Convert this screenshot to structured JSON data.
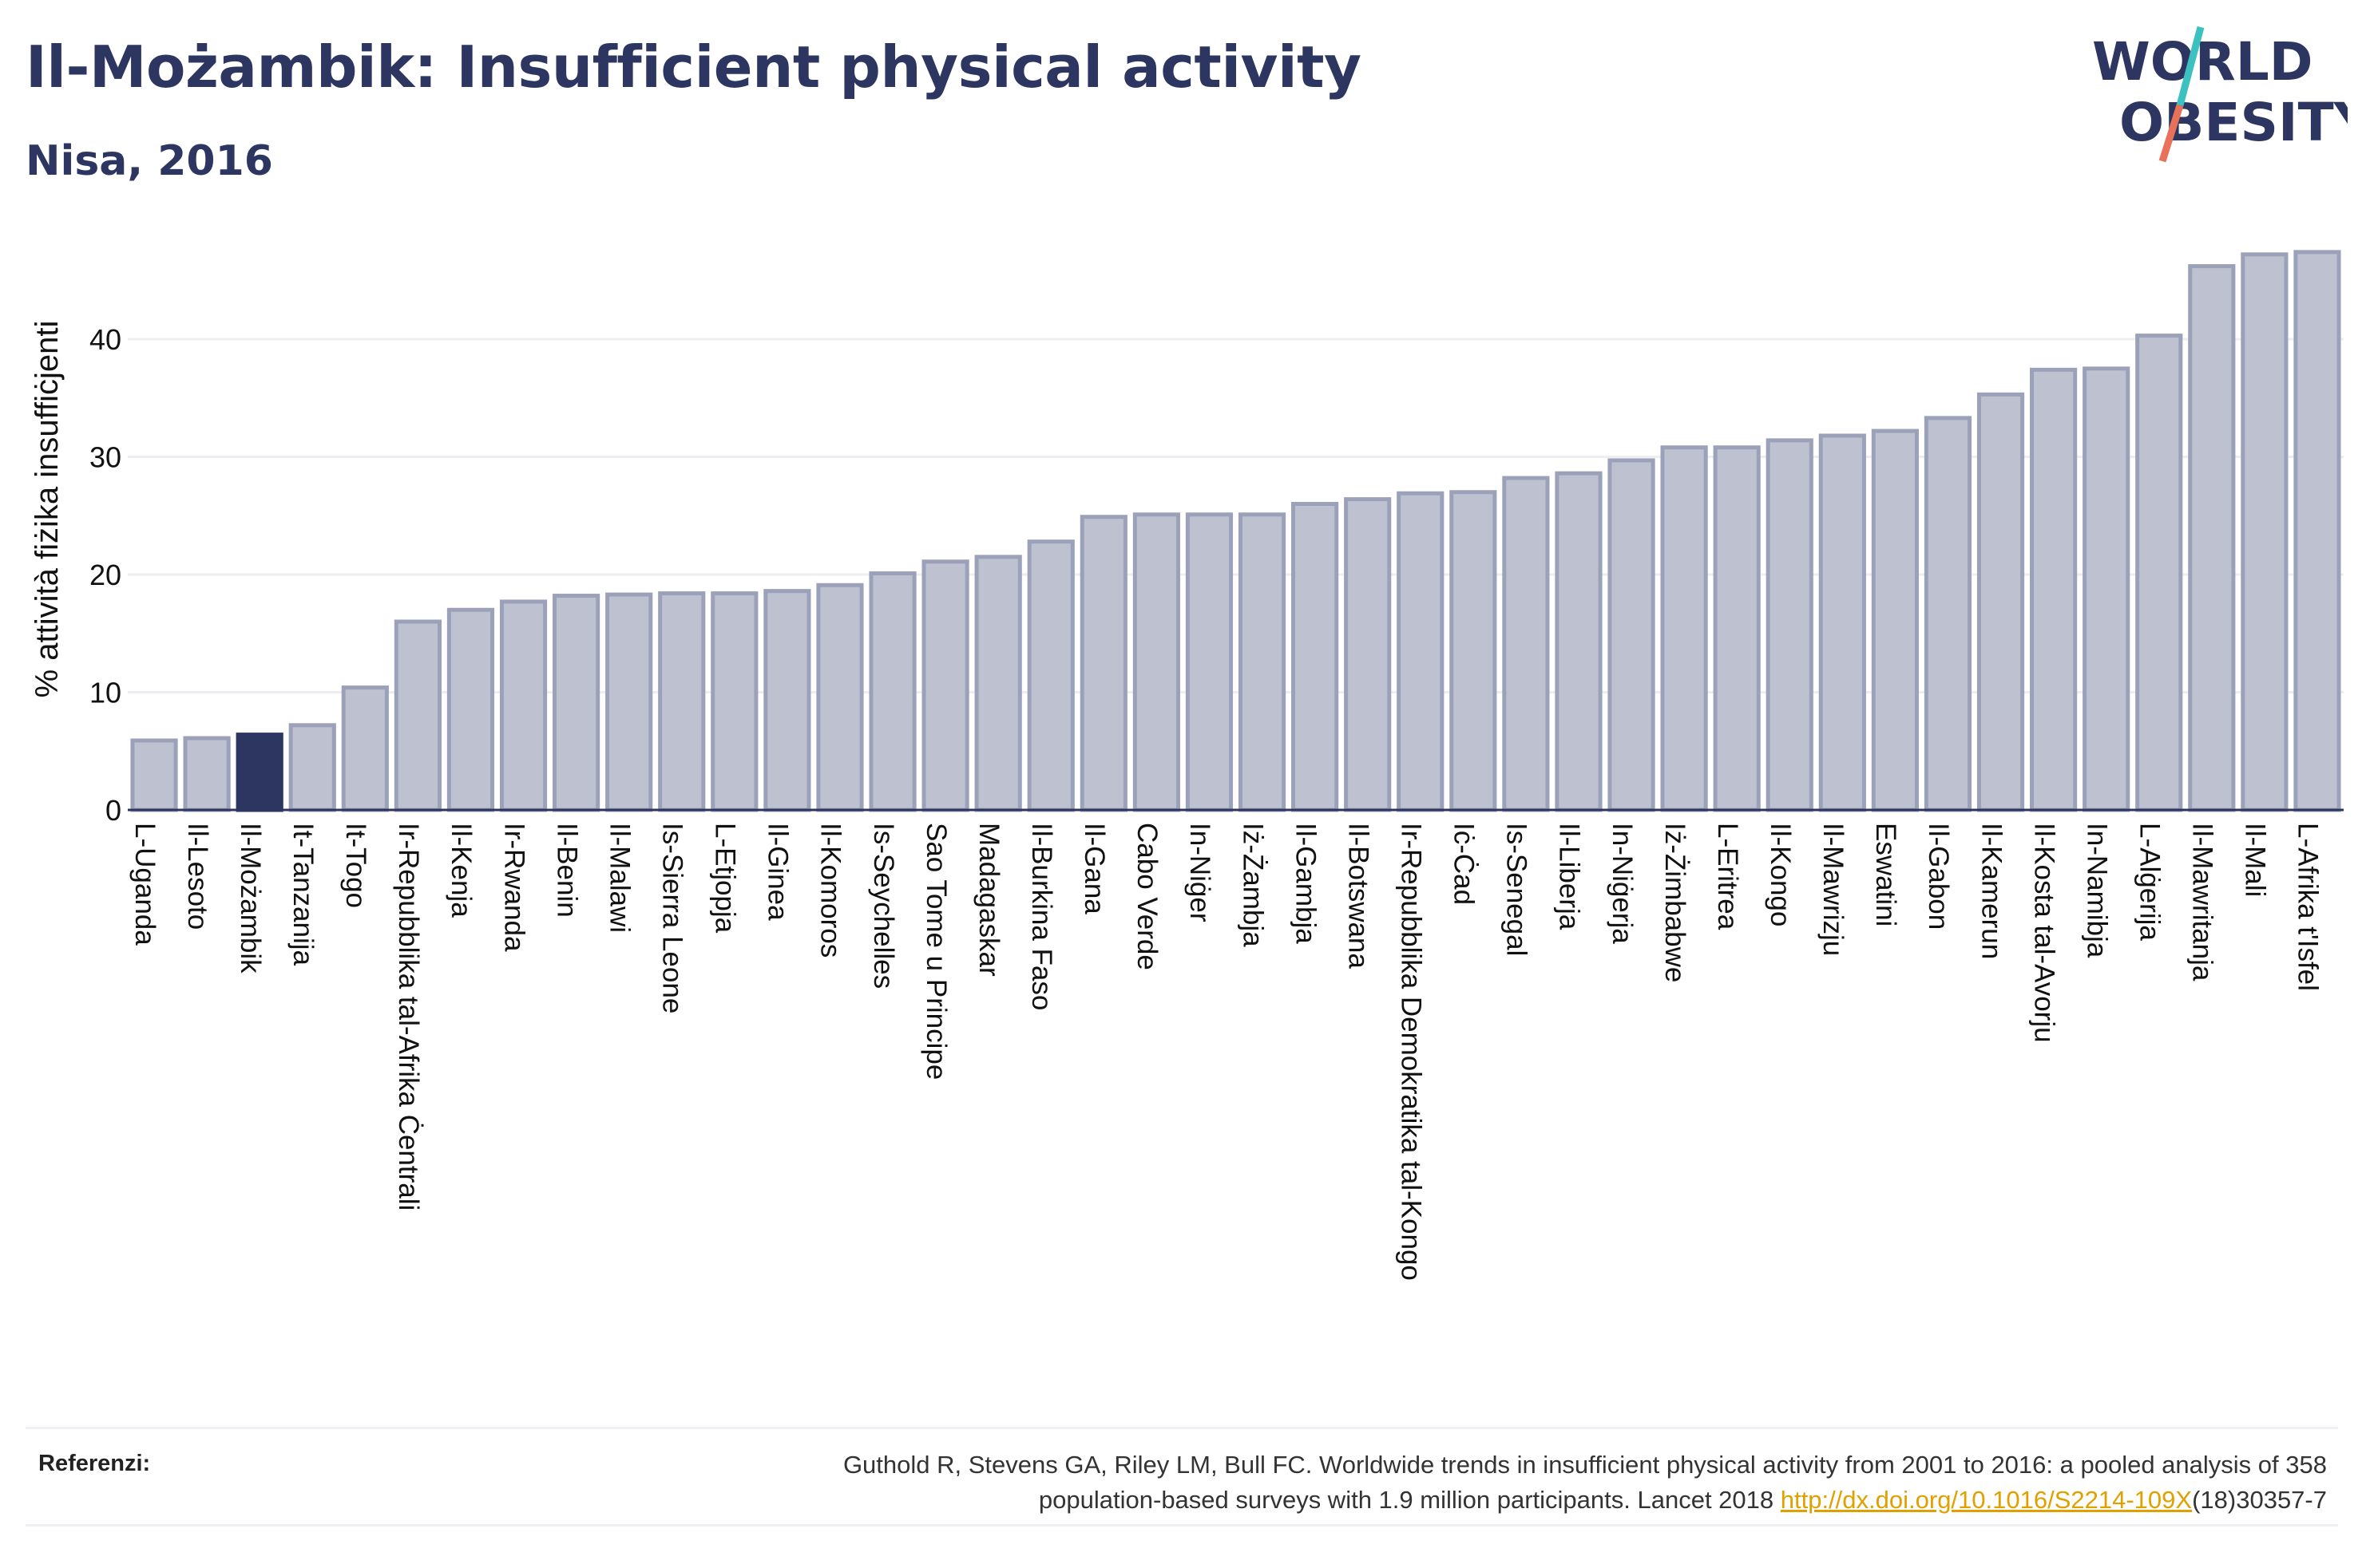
{
  "title": "Il-Możambik: Insufficient physical activity",
  "subtitle": "Nisa, 2016",
  "logo": {
    "line1": "WORLD",
    "line2": "OBESITY"
  },
  "colors": {
    "title": "#2c3660",
    "bar": "#bec2d0",
    "bar_stroke": "#9ba1b9",
    "highlight": "#2c3660",
    "grid": "#eceef2",
    "logo_slash_top": "#3cc1c0",
    "logo_slash_bottom": "#e8715a"
  },
  "chart_data": {
    "type": "bar",
    "ylabel": "% attività fiżika insuffiċjenti",
    "ylim": [
      0,
      50
    ],
    "yticks": [
      0,
      10,
      20,
      30,
      40
    ],
    "grid": true,
    "highlight": "Il-Możambik",
    "categories": [
      "L-Uganda",
      "Il-Lesoto",
      "Il-Możambik",
      "It-Tanzanija",
      "It-Togo",
      "Ir-Repubblika tal-Afrika Ċentrali",
      "Il-Kenja",
      "Ir-Rwanda",
      "Il-Benin",
      "Il-Malawi",
      "Is-Sierra Leone",
      "L-Etjopja",
      "Il-Ginea",
      "Il-Komoros",
      "Is-Seychelles",
      "Sao Tome u Principe",
      "Madagaskar",
      "Il-Burkina Faso",
      "Il-Gana",
      "Cabo Verde",
      "In-Niġer",
      "Iż-Żambja",
      "Il-Gambja",
      "Il-Botswana",
      "Ir-Repubblika Demokratika tal-Kongo",
      "Iċ-Ċad",
      "Is-Senegal",
      "Il-Liberja",
      "In-Niġerja",
      "Iż-Żimbabwe",
      "L-Eritrea",
      "Il-Kongo",
      "Il-Mawrizju",
      "Eswatini",
      "Il-Gabon",
      "Il-Kamerun",
      "Il-Kosta tal-Avorju",
      "In-Namibja",
      "L-Alġerija",
      "Il-Mawritanja",
      "Il-Mali",
      "L-Afrika t'Isfel"
    ],
    "values": [
      5.9,
      6.1,
      6.4,
      7.2,
      10.4,
      16.0,
      17.0,
      17.7,
      18.2,
      18.3,
      18.4,
      18.4,
      18.6,
      19.1,
      20.1,
      21.1,
      21.5,
      22.8,
      24.9,
      25.1,
      25.1,
      25.1,
      26.0,
      26.4,
      26.9,
      27.0,
      28.2,
      28.6,
      29.7,
      30.8,
      30.8,
      31.4,
      31.8,
      32.2,
      33.3,
      35.3,
      37.4,
      37.5,
      40.3,
      46.2,
      47.2,
      47.4
    ]
  },
  "footer": {
    "label": "Referenzi:",
    "line1": "Guthold R, Stevens GA, Riley LM, Bull FC. Worldwide trends in insufficient physical activity from 2001 to 2016: a pooled analysis of 358",
    "line2_pre": "population-based surveys with 1.9 million participants. Lancet 2018 ",
    "link": "http://dx.doi.org/10.1016/S2214-109X",
    "line2_post": "(18)30357-7"
  }
}
